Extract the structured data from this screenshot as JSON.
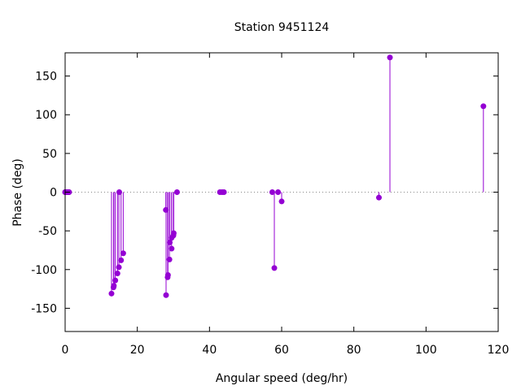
{
  "chart_data": {
    "type": "scatter",
    "style": "impulses-with-points",
    "title": "Station 9451124",
    "xlabel": "Angular speed (deg/hr)",
    "ylabel": "Phase (deg)",
    "xlim": [
      0,
      120
    ],
    "ylim": [
      -180,
      180
    ],
    "xticks": [
      0,
      20,
      40,
      60,
      80,
      100,
      120
    ],
    "yticks": [
      -150,
      -100,
      -50,
      0,
      50,
      100,
      150
    ],
    "grid": false,
    "zero_line": true,
    "color": "#9400d3",
    "points": [
      {
        "x": 0.0,
        "y": 0
      },
      {
        "x": 0.04,
        "y": 0
      },
      {
        "x": 0.08,
        "y": 0
      },
      {
        "x": 0.5,
        "y": 0
      },
      {
        "x": 0.55,
        "y": 0
      },
      {
        "x": 1.0,
        "y": 0
      },
      {
        "x": 1.1,
        "y": 0
      },
      {
        "x": 12.85,
        "y": -131
      },
      {
        "x": 13.4,
        "y": -123
      },
      {
        "x": 13.5,
        "y": -121
      },
      {
        "x": 13.9,
        "y": -114
      },
      {
        "x": 14.5,
        "y": -105
      },
      {
        "x": 14.9,
        "y": -97
      },
      {
        "x": 15.0,
        "y": 0
      },
      {
        "x": 15.5,
        "y": -88
      },
      {
        "x": 16.1,
        "y": -79
      },
      {
        "x": 27.9,
        "y": -23
      },
      {
        "x": 27.97,
        "y": -133
      },
      {
        "x": 28.4,
        "y": -110
      },
      {
        "x": 28.5,
        "y": -107
      },
      {
        "x": 28.9,
        "y": -87
      },
      {
        "x": 29.0,
        "y": -65
      },
      {
        "x": 29.5,
        "y": -73
      },
      {
        "x": 29.5,
        "y": -59
      },
      {
        "x": 30.0,
        "y": -56
      },
      {
        "x": 30.1,
        "y": -53
      },
      {
        "x": 31.0,
        "y": 0
      },
      {
        "x": 42.9,
        "y": 0
      },
      {
        "x": 43.5,
        "y": 0
      },
      {
        "x": 44.0,
        "y": 0
      },
      {
        "x": 57.4,
        "y": 0
      },
      {
        "x": 57.97,
        "y": -98
      },
      {
        "x": 59.0,
        "y": 0
      },
      {
        "x": 60.0,
        "y": -12
      },
      {
        "x": 86.95,
        "y": -7
      },
      {
        "x": 90.0,
        "y": 174
      },
      {
        "x": 115.9,
        "y": 111
      }
    ]
  }
}
